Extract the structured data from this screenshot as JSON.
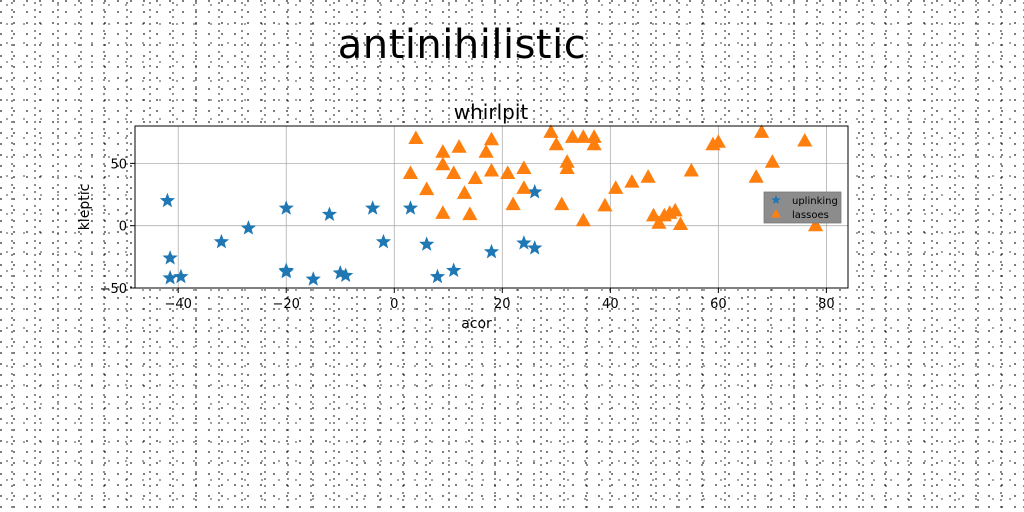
{
  "page": {
    "title": "antinihilistic"
  },
  "chart_data": {
    "type": "scatter",
    "title": "whirlpit",
    "xlabel": "acor",
    "ylabel": "kleptic",
    "xlim": [
      -48,
      84
    ],
    "ylim": [
      -50,
      80
    ],
    "xticks": [
      -40,
      -20,
      0,
      20,
      40,
      60,
      80
    ],
    "yticks": [
      -50,
      0,
      50
    ],
    "xtick_labels": [
      "−40",
      "−20",
      "0",
      "20",
      "40",
      "60",
      "80"
    ],
    "ytick_labels": [
      "−50",
      "0",
      "50"
    ],
    "grid": true,
    "legend_position": "center-right",
    "series": [
      {
        "name": "uplinking",
        "marker": "star",
        "color": "#1f77b4",
        "points": [
          [
            -42,
            20
          ],
          [
            -41.5,
            -26
          ],
          [
            -41.5,
            -42
          ],
          [
            -39.5,
            -41
          ],
          [
            -32,
            -13
          ],
          [
            -27,
            -2
          ],
          [
            -20,
            14
          ],
          [
            -20,
            -36
          ],
          [
            -20,
            -37
          ],
          [
            -15,
            -43
          ],
          [
            -12,
            9
          ],
          [
            -10,
            -38
          ],
          [
            -9,
            -40
          ],
          [
            -4,
            14
          ],
          [
            -2,
            -13
          ],
          [
            3,
            14
          ],
          [
            6,
            -15
          ],
          [
            8,
            -41
          ],
          [
            11,
            -36
          ],
          [
            18,
            -21
          ],
          [
            24,
            -14
          ],
          [
            26,
            -18
          ],
          [
            26,
            27
          ]
        ]
      },
      {
        "name": "lassoes",
        "marker": "triangle",
        "color": "#ff7f0e",
        "points": [
          [
            3,
            42
          ],
          [
            4,
            70
          ],
          [
            6,
            29
          ],
          [
            9,
            10
          ],
          [
            9,
            59
          ],
          [
            9,
            49
          ],
          [
            11,
            42
          ],
          [
            12,
            63
          ],
          [
            13,
            26
          ],
          [
            14,
            9
          ],
          [
            15,
            38
          ],
          [
            17,
            59
          ],
          [
            18,
            69
          ],
          [
            18,
            44
          ],
          [
            21,
            42
          ],
          [
            22,
            17
          ],
          [
            24,
            30
          ],
          [
            24,
            46
          ],
          [
            29,
            75
          ],
          [
            30,
            65
          ],
          [
            31,
            17
          ],
          [
            32,
            46
          ],
          [
            32,
            51
          ],
          [
            33,
            71
          ],
          [
            35,
            4
          ],
          [
            35,
            71
          ],
          [
            37,
            71
          ],
          [
            37,
            65
          ],
          [
            39,
            16
          ],
          [
            41,
            30
          ],
          [
            44,
            35
          ],
          [
            47,
            39
          ],
          [
            48,
            8
          ],
          [
            49,
            2
          ],
          [
            50,
            8
          ],
          [
            51,
            10
          ],
          [
            52,
            12
          ],
          [
            53,
            1
          ],
          [
            55,
            44
          ],
          [
            59,
            65
          ],
          [
            60,
            67
          ],
          [
            67,
            39
          ],
          [
            68,
            75
          ],
          [
            70,
            51
          ],
          [
            76,
            68
          ],
          [
            78,
            0
          ]
        ]
      }
    ]
  }
}
